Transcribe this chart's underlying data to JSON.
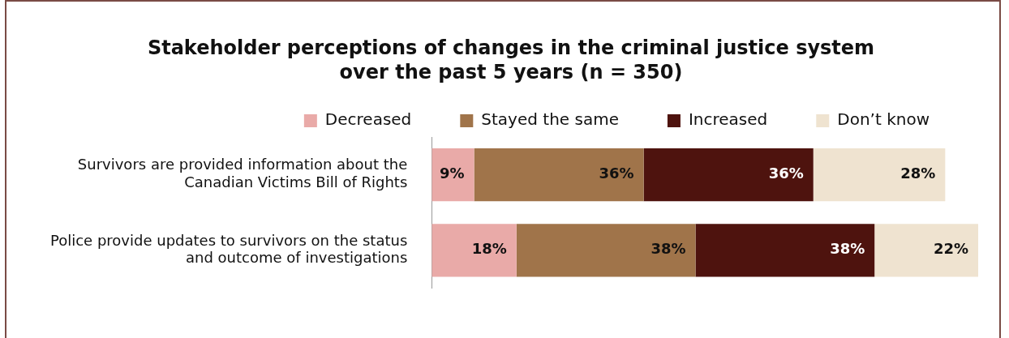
{
  "chart_data": {
    "type": "bar",
    "orientation": "horizontal",
    "stacked": true,
    "title": "Stakeholder perceptions of changes in the criminal justice system over the past 5 years (n = 350)",
    "categories": [
      "Survivors are provided information about the Canadian Victims Bill of Rights",
      "Police provide updates to survivors on the status and outcome of investigations"
    ],
    "series": [
      {
        "name": "Decreased",
        "color": "#e9aaa8",
        "values": [
          9,
          18
        ],
        "value_labels": [
          "9%",
          "18%"
        ]
      },
      {
        "name": "Stayed the same",
        "color": "#a0744a",
        "values": [
          36,
          38
        ],
        "value_labels": [
          "36%",
          "38%"
        ]
      },
      {
        "name": "Increased",
        "color": "#4e130e",
        "values": [
          36,
          38
        ],
        "value_labels": [
          "36%",
          "38%"
        ]
      },
      {
        "name": "Don’t know",
        "color": "#efe3d0",
        "values": [
          28,
          22
        ],
        "value_labels": [
          "28%",
          "22%"
        ]
      }
    ],
    "tick_labels": "y",
    "legend": "top"
  }
}
